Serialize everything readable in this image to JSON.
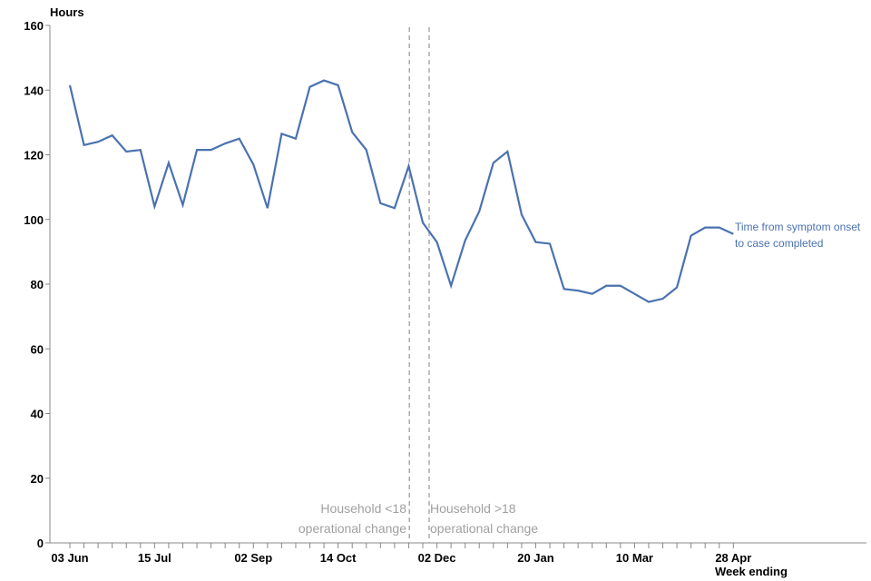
{
  "chart_data": {
    "type": "line",
    "y_label": "Hours",
    "x_label": "Week ending",
    "categories": [
      "03 Jun",
      null,
      null,
      null,
      null,
      null,
      "15 Jul",
      null,
      null,
      null,
      null,
      null,
      null,
      "02 Sep",
      null,
      null,
      null,
      null,
      null,
      "14 Oct",
      null,
      null,
      null,
      null,
      null,
      null,
      "02 Dec",
      null,
      null,
      null,
      null,
      null,
      null,
      "20 Jan",
      null,
      null,
      null,
      null,
      null,
      null,
      "10 Mar",
      null,
      null,
      null,
      null,
      null,
      null,
      "28 Apr"
    ],
    "series": [
      {
        "name": "Time from symptom onset to case completed",
        "color": "#4a72b0",
        "values": [
          141.5,
          123,
          124,
          126,
          121,
          121.5,
          104,
          117.5,
          104.5,
          121.5,
          121.5,
          123.5,
          125,
          117,
          103.5,
          126.5,
          125,
          141,
          143,
          141.5,
          127,
          121.5,
          105,
          103.5,
          116.5,
          99,
          93,
          79.5,
          93.5,
          102.5,
          117.5,
          121,
          101.5,
          93,
          92.5,
          78.5,
          78,
          77,
          79.5,
          79.5,
          77,
          74.5,
          75.5,
          79,
          95,
          97.5,
          97.5,
          95.5
        ]
      }
    ],
    "annotations": [
      "Household <18 operational change",
      "Household >18 operational change"
    ],
    "ylim": [
      0,
      160
    ],
    "yticks": [
      0,
      20,
      40,
      60,
      80,
      100,
      120,
      140,
      160
    ],
    "grid": false
  }
}
